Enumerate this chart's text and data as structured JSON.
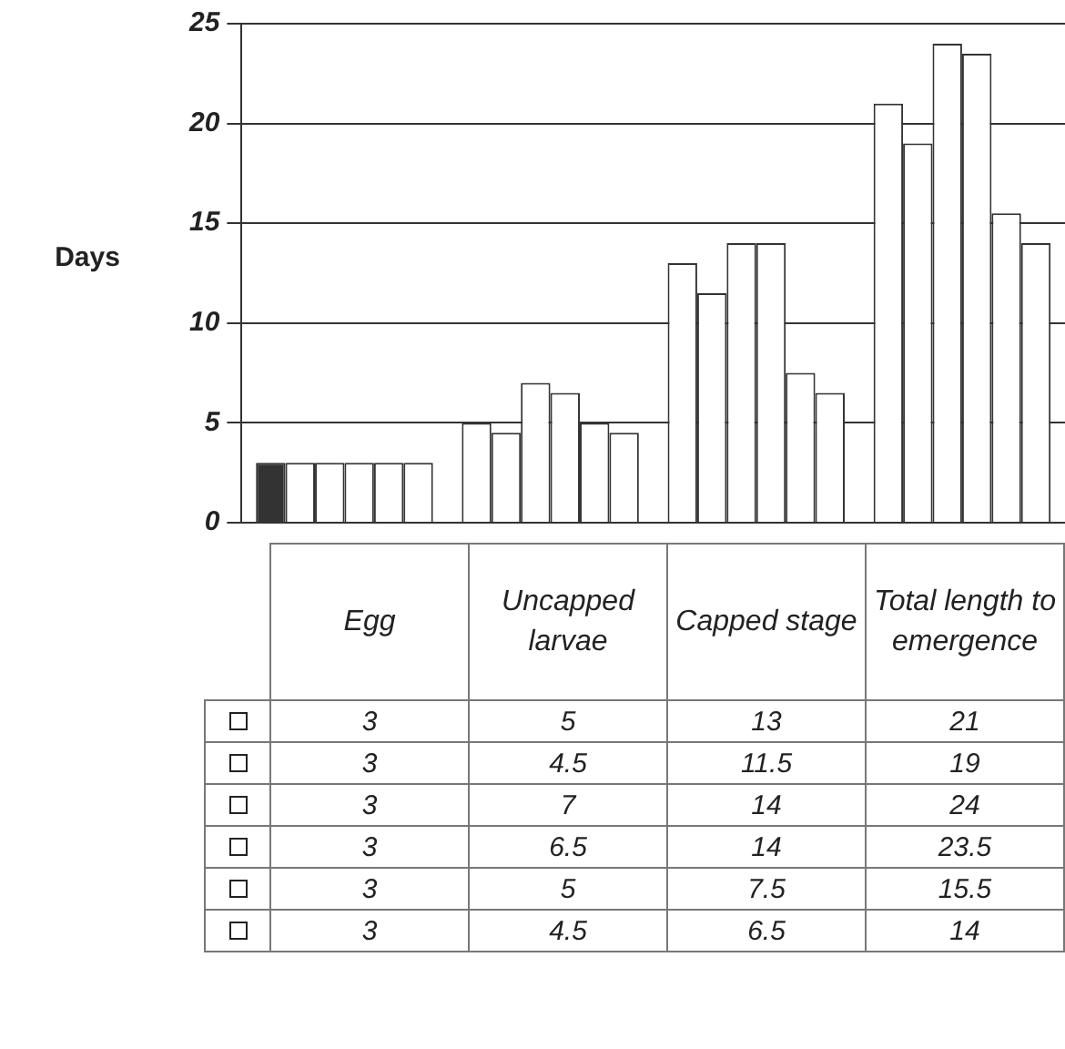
{
  "chart_data": {
    "type": "bar",
    "ylabel": "Days",
    "categories": [
      "Egg",
      "Uncapped larvae",
      "Capped stage",
      "Total length to emergence"
    ],
    "series": [
      {
        "color": "#ffffff",
        "colors": [
          "#333333",
          "#ffffff",
          "#ffffff",
          "#ffffff"
        ],
        "values": [
          3,
          5,
          13,
          21
        ]
      },
      {
        "color": "#ffffff",
        "values": [
          3,
          4.5,
          11.5,
          19
        ]
      },
      {
        "color": "#ffffff",
        "values": [
          3,
          7,
          14,
          24
        ]
      },
      {
        "color": "#ffffff",
        "values": [
          3,
          6.5,
          14,
          23.5
        ]
      },
      {
        "color": "#ffffff",
        "values": [
          3,
          5,
          7.5,
          15.5
        ]
      },
      {
        "color": "#ffffff",
        "values": [
          3,
          4.5,
          6.5,
          14
        ]
      }
    ],
    "ylim": [
      0,
      25
    ],
    "yticks": [
      0,
      5,
      10,
      15,
      20,
      25
    ],
    "grid": "y",
    "legend": false,
    "tick_labels": "y",
    "data_labels": true
  }
}
